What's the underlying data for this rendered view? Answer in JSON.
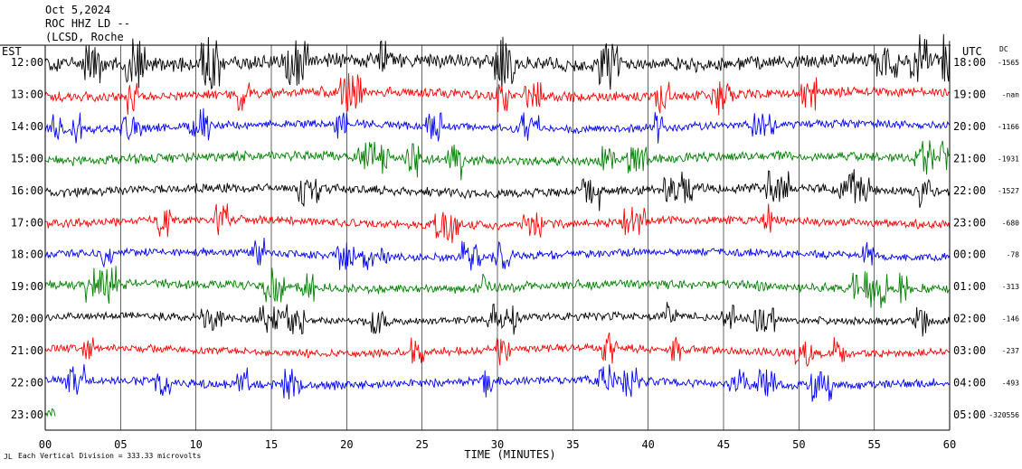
{
  "header": {
    "date": "Oct 5,2024",
    "station": "ROC HHZ LD --",
    "location": "(LCSD, Roche"
  },
  "axes": {
    "left_label": "EST",
    "right_label": "UTC",
    "dc_label": "DC",
    "xlabel": "TIME (MINUTES)"
  },
  "footer": {
    "scale_text": "Each Vertical Division = 333.33 microvolts"
  },
  "colors": {
    "background": "#ffffff",
    "trace_cycle": [
      "#000000",
      "#ff0000",
      "#0000ff",
      "#008000"
    ]
  },
  "chart_data": {
    "type": "line",
    "title": "",
    "xlabel": "TIME (MINUTES)",
    "ylabel": "",
    "xlim": [
      0,
      60
    ],
    "x_ticks": [
      "00",
      "05",
      "10",
      "15",
      "20",
      "25",
      "30",
      "35",
      "40",
      "45",
      "50",
      "55",
      "60"
    ],
    "left_ticks": [
      "12:00",
      "13:00",
      "14:00",
      "15:00",
      "16:00",
      "17:00",
      "18:00",
      "19:00",
      "20:00",
      "21:00",
      "22:00",
      "23:00"
    ],
    "right_ticks": [
      "18:00",
      "19:00",
      "20:00",
      "21:00",
      "22:00",
      "23:00",
      "00:00",
      "01:00",
      "02:00",
      "03:00",
      "04:00",
      "05:00"
    ],
    "dc_offsets": [
      "-1565",
      "-nan",
      "-1166",
      "-1931",
      "-1527",
      "-680",
      "-78",
      "-313",
      "-146",
      "-237",
      "-493",
      "-320556"
    ],
    "rows": [
      {
        "est": "12:00",
        "utc": "18:00",
        "color": "#000000",
        "amplitude": 0.9,
        "x_end": 60
      },
      {
        "est": "13:00",
        "utc": "19:00",
        "color": "#ff0000",
        "amplitude": 0.6,
        "x_end": 60
      },
      {
        "est": "14:00",
        "utc": "20:00",
        "color": "#0000ff",
        "amplitude": 0.5,
        "x_end": 60
      },
      {
        "est": "15:00",
        "utc": "21:00",
        "color": "#008000",
        "amplitude": 0.6,
        "x_end": 60
      },
      {
        "est": "16:00",
        "utc": "22:00",
        "color": "#000000",
        "amplitude": 0.6,
        "x_end": 60
      },
      {
        "est": "17:00",
        "utc": "23:00",
        "color": "#ff0000",
        "amplitude": 0.55,
        "x_end": 60
      },
      {
        "est": "18:00",
        "utc": "00:00",
        "color": "#0000ff",
        "amplitude": 0.5,
        "x_end": 60
      },
      {
        "est": "19:00",
        "utc": "01:00",
        "color": "#008000",
        "amplitude": 0.6,
        "x_end": 60
      },
      {
        "est": "20:00",
        "utc": "02:00",
        "color": "#000000",
        "amplitude": 0.5,
        "x_end": 60
      },
      {
        "est": "21:00",
        "utc": "03:00",
        "color": "#ff0000",
        "amplitude": 0.5,
        "x_end": 60
      },
      {
        "est": "22:00",
        "utc": "04:00",
        "color": "#0000ff",
        "amplitude": 0.55,
        "x_end": 60
      },
      {
        "est": "23:00",
        "utc": "05:00",
        "color": "#008000",
        "amplitude": 0.6,
        "x_end": 0.7
      }
    ]
  }
}
